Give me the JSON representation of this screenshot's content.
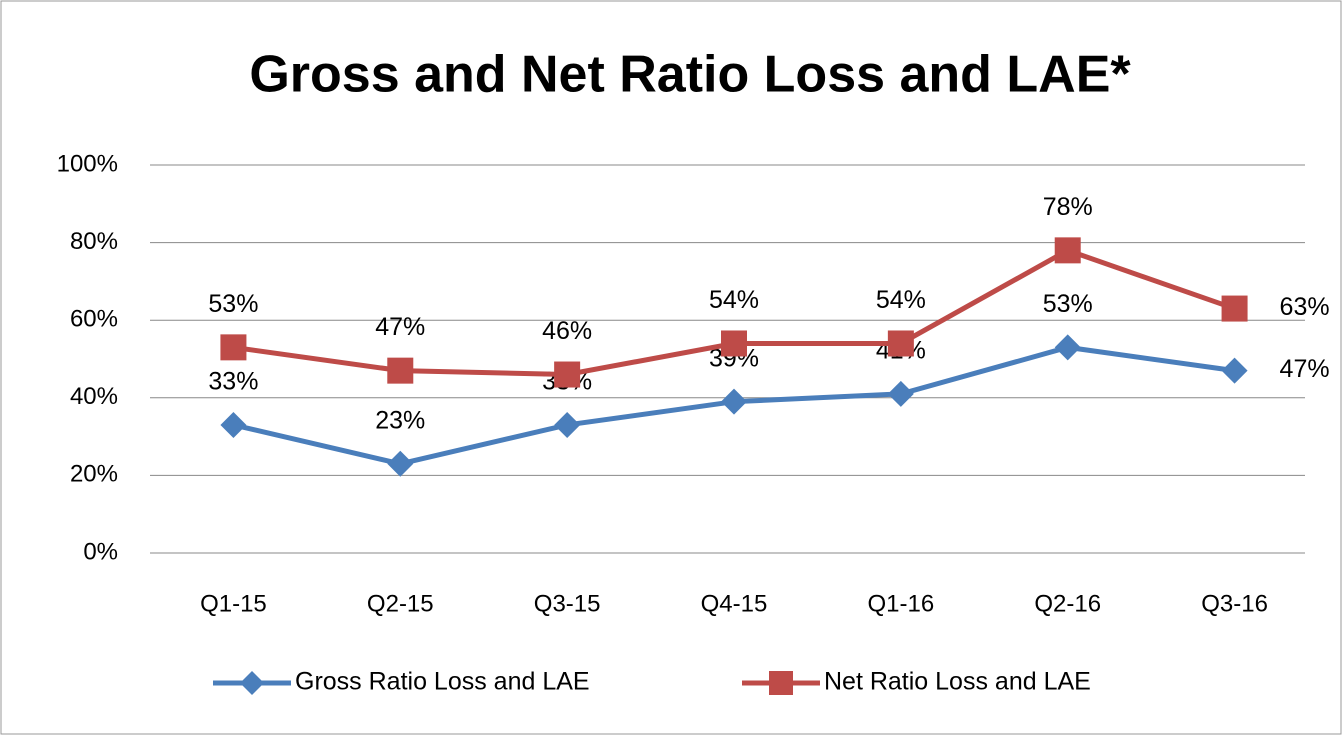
{
  "chart_data": {
    "type": "line",
    "title": "Gross and Net Ratio Loss and LAE*",
    "categories": [
      "Q1-15",
      "Q2-15",
      "Q3-15",
      "Q4-15",
      "Q1-16",
      "Q2-16",
      "Q3-16"
    ],
    "series": [
      {
        "name": "Gross Ratio Loss and LAE",
        "color": "#4a7ebb",
        "marker": "diamond",
        "values": [
          33,
          23,
          33,
          39,
          41,
          53,
          47
        ],
        "value_labels": [
          "33%",
          "23%",
          "33%",
          "39%",
          "41%",
          "53%",
          "47%"
        ]
      },
      {
        "name": "Net Ratio Loss and LAE",
        "color": "#be4b48",
        "marker": "square",
        "values": [
          53,
          47,
          46,
          54,
          54,
          78,
          63
        ],
        "value_labels": [
          "53%",
          "47%",
          "46%",
          "54%",
          "54%",
          "78%",
          "63%"
        ]
      }
    ],
    "ylim": [
      0,
      100
    ],
    "yticks": [
      {
        "value": 0,
        "label": "0%"
      },
      {
        "value": 20,
        "label": "20%"
      },
      {
        "value": 40,
        "label": "40%"
      },
      {
        "value": 60,
        "label": "60%"
      },
      {
        "value": 80,
        "label": "80%"
      },
      {
        "value": 100,
        "label": "100%"
      }
    ],
    "grid": true,
    "legend": "bottom"
  }
}
